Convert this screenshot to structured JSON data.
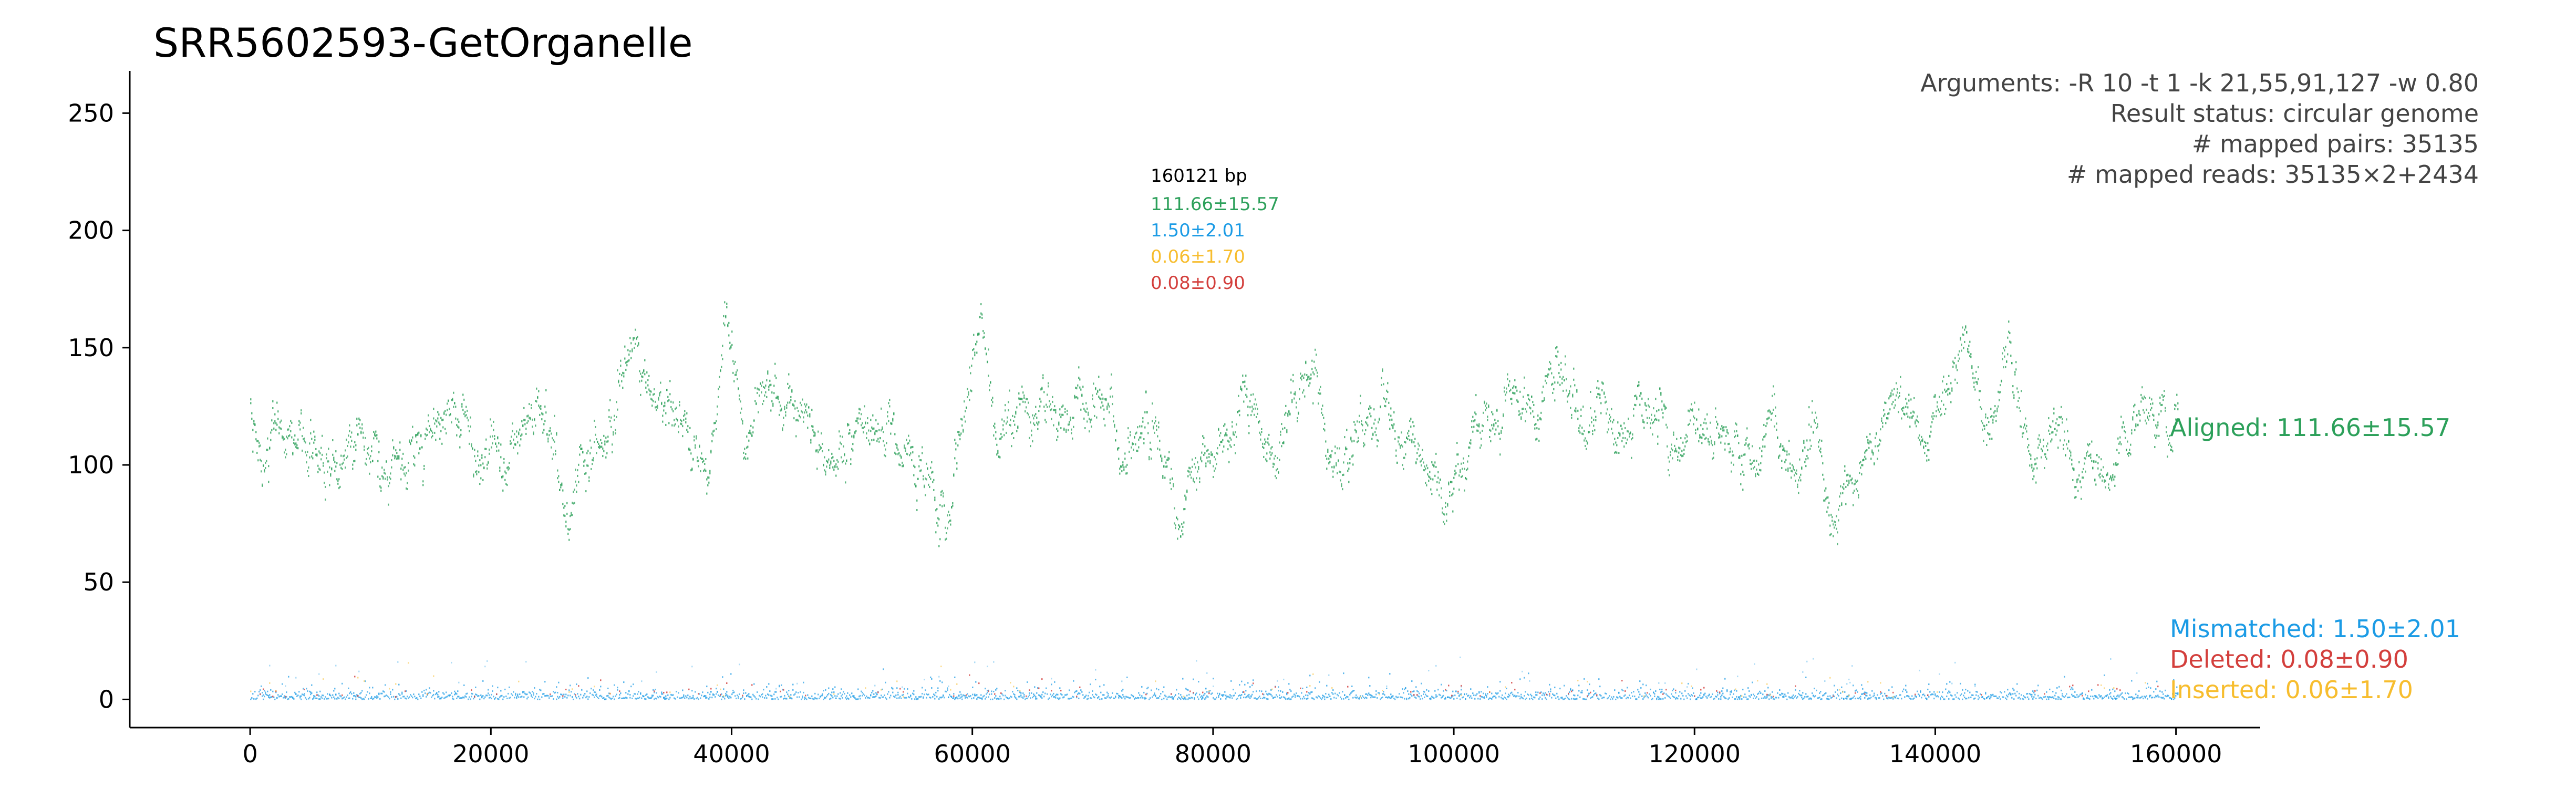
{
  "chart_data": {
    "type": "scatter",
    "title": "SRR5602593-GetOrganelle",
    "xlabel": "",
    "ylabel": "",
    "xlim": [
      -10000,
      167000
    ],
    "ylim": [
      -12,
      268
    ],
    "x_ticks": [
      0,
      20000,
      40000,
      60000,
      80000,
      100000,
      120000,
      140000,
      160000
    ],
    "x_tick_labels": [
      "0",
      "20000",
      "40000",
      "60000",
      "80000",
      "100000",
      "120000",
      "140000",
      "160000"
    ],
    "y_ticks": [
      0,
      50,
      100,
      150,
      200,
      250
    ],
    "y_tick_labels": [
      "0",
      "50",
      "100",
      "150",
      "200",
      "250"
    ],
    "grid": false,
    "arguments": [
      "Arguments: -R 10 -t 1 -k 21,55,91,127 -w 0.80",
      "Result status: circular genome",
      "# mapped pairs: 35135",
      "# mapped reads: 35135×2+2434"
    ],
    "stats": {
      "length": "160121 bp",
      "aligned": "111.66±15.57",
      "mismatched": "1.50±2.01",
      "inserted": "0.06±1.70",
      "deleted": "0.08±0.90"
    },
    "series": [
      {
        "name": "Aligned: 111.66±15.57",
        "color": "#2ca05a",
        "mean": 111.66,
        "sd": 15.57,
        "x_range": [
          0,
          160121
        ],
        "profile_x": [
          0,
          1000,
          2000,
          3000,
          5000,
          7000,
          9000,
          11000,
          13000,
          15000,
          17000,
          19000,
          21000,
          23000,
          25000,
          26500,
          28000,
          30000,
          32000,
          34000,
          36000,
          38000,
          39500,
          41000,
          43000,
          44500,
          46000,
          48000,
          50000,
          52000,
          54000,
          56000,
          58000,
          59000,
          60500,
          62000,
          64000,
          66000,
          68000,
          70000,
          72000,
          74000,
          76000,
          77000,
          79000,
          81000,
          83000,
          85000,
          87000,
          88500,
          90000,
          92000,
          94000,
          96000,
          98000,
          99500,
          101000,
          103000,
          105000,
          107000,
          108500,
          110000,
          112000,
          114000,
          116000,
          118000,
          120000,
          122000,
          124000,
          126000,
          128000,
          130000,
          131500,
          133000,
          135000,
          137000,
          139000,
          141000,
          142500,
          144000,
          146000,
          148000,
          150000,
          152000,
          154000,
          156000,
          158000,
          160121
        ],
        "profile_y": [
          125,
          85,
          115,
          108,
          104,
          98,
          112,
          104,
          100,
          118,
          125,
          105,
          98,
          118,
          110,
          80,
          98,
          122,
          140,
          128,
          118,
          100,
          165,
          112,
          148,
          128,
          115,
          110,
          102,
          120,
          110,
          95,
          80,
          115,
          148,
          112,
          125,
          118,
          122,
          130,
          112,
          105,
          105,
          75,
          105,
          112,
          128,
          108,
          135,
          140,
          100,
          108,
          122,
          110,
          95,
          85,
          110,
          120,
          130,
          118,
          150,
          125,
          118,
          110,
          128,
          105,
          118,
          112,
          100,
          120,
          98,
          115,
          75,
          88,
          110,
          130,
          115,
          135,
          160,
          118,
          145,
          105,
          115,
          95,
          100,
          110,
          120,
          118
        ]
      },
      {
        "name": "Mismatched: 1.50±2.01",
        "color": "#1b9be5",
        "mean": 1.5,
        "sd": 2.01,
        "x_range": [
          0,
          160121
        ]
      },
      {
        "name": "Deleted: 0.08±0.90",
        "color": "#d33f3c",
        "mean": 0.08,
        "sd": 0.9,
        "x_range": [
          0,
          160121
        ]
      },
      {
        "name": "Inserted: 0.06±1.70",
        "color": "#f7bd2e",
        "mean": 0.06,
        "sd": 1.7,
        "x_range": [
          0,
          160121
        ]
      }
    ]
  }
}
